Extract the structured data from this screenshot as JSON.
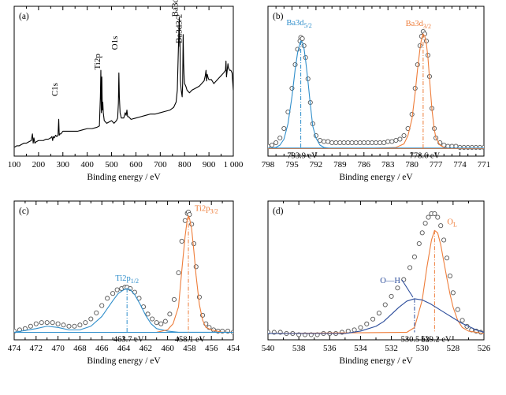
{
  "colors": {
    "orange": "#ee7d3a",
    "blue": "#2f8ecb",
    "navy": "#2b4c9b",
    "marker": "#555555",
    "black": "#000000"
  },
  "chart_data": [
    {
      "id": "a",
      "type": "line",
      "panel_label": "(a)",
      "xlabel": "Binding energy / eV",
      "xlim": [
        100,
        1000
      ],
      "ylim": [
        0,
        100
      ],
      "x_reversed": false,
      "xticks": [
        100,
        200,
        300,
        400,
        500,
        600,
        700,
        800,
        900,
        1000
      ],
      "tick_labels": [
        "100",
        "200",
        "300",
        "400",
        "500",
        "600",
        "700",
        "800",
        "900",
        "1 000"
      ],
      "series": [
        {
          "style": "spectrum",
          "x": [
            102,
            110,
            120,
            130,
            140,
            150,
            160,
            170,
            175,
            178,
            181,
            185,
            190,
            200,
            210,
            220,
            230,
            240,
            250,
            255,
            258,
            261,
            265,
            270,
            275,
            280,
            283,
            285,
            288,
            292,
            300,
            320,
            340,
            360,
            380,
            400,
            420,
            440,
            450,
            454,
            456,
            458,
            460,
            462,
            464,
            466,
            470,
            480,
            500,
            510,
            520,
            525,
            528,
            530,
            532,
            535,
            540,
            550,
            556,
            560,
            563,
            566,
            570,
            580,
            600,
            620,
            640,
            660,
            680,
            700,
            720,
            740,
            755,
            765,
            770,
            775,
            778,
            779,
            780,
            781,
            782,
            783,
            786,
            790,
            792,
            794,
            796,
            798,
            800,
            805,
            810,
            820,
            830,
            840,
            850,
            860,
            870,
            880,
            885,
            888,
            890,
            893,
            897,
            900,
            910,
            920,
            930,
            940,
            950,
            960,
            968,
            970,
            972,
            975,
            978,
            980,
            985,
            990,
            995,
            1000
          ],
          "y": [
            2,
            3,
            3,
            4,
            5,
            5,
            6,
            7,
            12,
            5,
            9,
            5,
            6,
            7,
            7,
            7,
            8,
            8,
            9,
            10,
            7,
            10,
            9,
            11,
            10,
            11,
            23,
            11,
            12,
            12,
            14,
            14,
            14,
            14,
            15,
            16,
            16,
            17,
            18,
            40,
            60,
            28,
            55,
            30,
            36,
            28,
            22,
            20,
            22,
            20,
            22,
            24,
            35,
            58,
            40,
            28,
            24,
            24,
            28,
            26,
            30,
            25,
            25,
            23,
            24,
            25,
            26,
            27,
            27,
            28,
            29,
            30,
            32,
            36,
            45,
            80,
            100,
            85,
            78,
            82,
            65,
            52,
            45,
            40,
            50,
            87,
            65,
            55,
            50,
            48,
            45,
            43,
            45,
            46,
            47,
            48,
            50,
            52,
            56,
            60,
            52,
            57,
            54,
            53,
            53,
            50,
            52,
            54,
            56,
            58,
            60,
            67,
            55,
            60,
            65,
            62,
            60,
            60,
            58,
            45
          ]
        }
      ],
      "annotations": [
        {
          "text": "C1s",
          "x": 285
        },
        {
          "text": "Ti2p",
          "x": 459
        },
        {
          "text": "O1s",
          "x": 530
        },
        {
          "text": "Ba3d5/2",
          "x": 778
        },
        {
          "text": "Ba3d3/2",
          "x": 794
        }
      ]
    },
    {
      "id": "b",
      "type": "scatter",
      "panel_label": "(b)",
      "xlabel": "Binding energy / eV",
      "xlim": [
        798,
        771
      ],
      "ylim": [
        0,
        100
      ],
      "x_reversed": true,
      "xticks": [
        798,
        795,
        792,
        789,
        786,
        783,
        780,
        777,
        774,
        771
      ],
      "tick_labels": [
        "798",
        "795",
        "792",
        "789",
        "786",
        "783",
        "780",
        "777",
        "774",
        "771"
      ],
      "series": [
        {
          "style": "markers",
          "x": [
            798,
            797.5,
            797,
            796.5,
            796,
            795.5,
            795,
            794.6,
            794.3,
            794,
            793.9,
            793.7,
            793.5,
            793.3,
            793,
            792.7,
            792.4,
            792,
            791.5,
            791,
            790.5,
            790,
            789.5,
            789,
            788.5,
            788,
            787.5,
            787,
            786.5,
            786,
            785.5,
            785,
            784.5,
            784,
            783.5,
            783,
            782.5,
            782,
            781.5,
            781,
            780.5,
            780,
            779.6,
            779.3,
            779,
            778.8,
            778.6,
            778.4,
            778.2,
            778,
            777.8,
            777.5,
            777.2,
            777,
            776.5,
            776,
            775.5,
            775,
            774.5,
            774,
            773.5,
            773,
            772.5,
            772,
            771.5,
            771
          ],
          "y": [
            3,
            4,
            6,
            10,
            18,
            32,
            52,
            72,
            85,
            92,
            95,
            94,
            88,
            78,
            60,
            40,
            22,
            12,
            8,
            7,
            7,
            6,
            6,
            6,
            6,
            6,
            6,
            6,
            6,
            6,
            6,
            6,
            6,
            6,
            6,
            7,
            7,
            8,
            9,
            12,
            18,
            30,
            52,
            72,
            88,
            96,
            100,
            98,
            92,
            80,
            62,
            35,
            18,
            10,
            6,
            4,
            3,
            3,
            3,
            2,
            2,
            2,
            2,
            2,
            2,
            2
          ]
        },
        {
          "style": "fit",
          "color_key": "blue",
          "x": [
            798,
            797,
            796.5,
            796,
            795.5,
            795,
            794.6,
            794.3,
            794,
            793.9,
            793.7,
            793.5,
            793.3,
            793,
            792.7,
            792.4,
            792,
            791.5,
            791,
            790,
            789,
            788
          ],
          "y": [
            1,
            2,
            4,
            9,
            22,
            45,
            68,
            82,
            90,
            92,
            91,
            86,
            76,
            58,
            38,
            20,
            10,
            4,
            2,
            1,
            1,
            1
          ]
        },
        {
          "style": "fit",
          "color_key": "orange",
          "x": [
            786,
            782,
            781,
            780.5,
            780,
            779.6,
            779.3,
            779,
            778.8,
            778.6,
            778.4,
            778.2,
            778,
            777.8,
            777.5,
            777.2,
            777,
            776.5,
            776,
            775,
            771
          ],
          "y": [
            1,
            2,
            5,
            12,
            26,
            48,
            68,
            85,
            94,
            98,
            96,
            90,
            78,
            60,
            34,
            17,
            10,
            4,
            2,
            1,
            1
          ]
        },
        {
          "style": "baseline",
          "color_key": "orange",
          "x": [
            798,
            771
          ],
          "y": [
            1,
            1
          ]
        },
        {
          "style": "baseline",
          "color_key": "blue",
          "x": [
            798,
            771
          ],
          "y": [
            1.5,
            1.5
          ]
        }
      ],
      "peaks": [
        {
          "x": 793.9,
          "y": 92,
          "label_main": "Ba3d",
          "label_sub": "5/2",
          "color_key": "blue",
          "be_label": "793.9 eV"
        },
        {
          "x": 778.6,
          "y": 98,
          "label_main": "Ba3d",
          "label_sub": "3/2",
          "color_key": "orange",
          "be_label": "778.6 eV"
        }
      ]
    },
    {
      "id": "c",
      "type": "scatter",
      "panel_label": "(c)",
      "xlabel": "Binding energy / eV",
      "xlim": [
        474,
        454
      ],
      "ylim": [
        0,
        100
      ],
      "x_reversed": true,
      "xticks": [
        474,
        472,
        470,
        468,
        466,
        464,
        462,
        460,
        458,
        456,
        454
      ],
      "tick_labels": [
        "474",
        "472",
        "470",
        "468",
        "466",
        "464",
        "462",
        "460",
        "458",
        "456",
        "454"
      ],
      "series": [
        {
          "style": "markers",
          "x": [
            474,
            473.5,
            473,
            472.5,
            472,
            471.5,
            471,
            470.5,
            470,
            469.5,
            469,
            468.5,
            468,
            467.5,
            467,
            466.5,
            466,
            465.5,
            465,
            464.6,
            464.2,
            463.9,
            463.7,
            463.4,
            463,
            462.6,
            462.2,
            461.8,
            461.4,
            461,
            460.6,
            460.2,
            459.8,
            459.4,
            459,
            458.7,
            458.4,
            458.2,
            458.1,
            458,
            457.8,
            457.6,
            457.4,
            457.1,
            456.8,
            456.5,
            456.2,
            455.8,
            455.4,
            455,
            454.5,
            454
          ],
          "y": [
            2,
            3,
            4,
            6,
            8,
            9,
            9,
            9,
            8,
            7,
            6,
            6,
            7,
            9,
            12,
            17,
            23,
            29,
            33,
            36,
            37,
            38,
            38,
            37,
            34,
            29,
            22,
            16,
            12,
            9,
            8,
            10,
            16,
            28,
            50,
            76,
            93,
            99,
            100,
            98,
            90,
            74,
            55,
            30,
            15,
            8,
            5,
            3,
            2,
            2,
            2,
            1
          ]
        },
        {
          "style": "fit",
          "color_key": "blue",
          "x": [
            474,
            472,
            471,
            470,
            469,
            468,
            467,
            466,
            465,
            464.5,
            464,
            463.7,
            463.4,
            463,
            462.5,
            462,
            461.5,
            461,
            460,
            459,
            458,
            454
          ],
          "y": [
            1,
            4,
            6,
            5,
            3,
            3,
            6,
            14,
            27,
            33,
            36,
            37,
            36,
            32,
            24,
            15,
            8,
            4,
            2,
            1,
            1,
            1
          ]
        },
        {
          "style": "fit",
          "color_key": "orange",
          "x": [
            461,
            460,
            459.5,
            459,
            458.7,
            458.4,
            458.2,
            458.1,
            458,
            457.8,
            457.6,
            457.4,
            457.1,
            456.8,
            456.5,
            456,
            455,
            454
          ],
          "y": [
            1,
            3,
            8,
            22,
            52,
            80,
            94,
            97,
            95,
            86,
            68,
            48,
            24,
            11,
            5,
            3,
            1,
            1
          ]
        },
        {
          "style": "baseline",
          "color_key": "blue",
          "x": [
            474,
            454
          ],
          "y": [
            1,
            1
          ]
        }
      ],
      "peaks": [
        {
          "x": 463.7,
          "y": 37,
          "label_main": "Ti2p",
          "label_sub": "1/2",
          "color_key": "blue",
          "be_label": "463.7 eV"
        },
        {
          "x": 458.1,
          "y": 97,
          "label_main": "Ti2p",
          "label_sub": "3/2",
          "color_key": "orange",
          "be_label": "458.1 eV"
        }
      ]
    },
    {
      "id": "d",
      "type": "scatter",
      "panel_label": "(d)",
      "xlabel": "Binding energy / eV",
      "xlim": [
        540,
        526
      ],
      "ylim": [
        0,
        100
      ],
      "x_reversed": true,
      "xticks": [
        540,
        538,
        536,
        534,
        532,
        530,
        528,
        526
      ],
      "tick_labels": [
        "540",
        "538",
        "536",
        "534",
        "532",
        "530",
        "528",
        "526"
      ],
      "series": [
        {
          "style": "markers",
          "x": [
            540,
            539.6,
            539.2,
            538.8,
            538.4,
            538,
            537.6,
            537.2,
            536.8,
            536.4,
            536,
            535.6,
            535.2,
            534.8,
            534.4,
            534,
            533.6,
            533.2,
            532.8,
            532.4,
            532,
            531.6,
            531.2,
            530.8,
            530.5,
            530.2,
            530,
            529.8,
            529.6,
            529.4,
            529.2,
            529,
            528.8,
            528.6,
            528.4,
            528.2,
            528,
            527.7,
            527.4,
            527.1,
            526.8,
            526.5,
            526.2
          ],
          "y": [
            1,
            1,
            1,
            0,
            0,
            -1,
            -1,
            -1,
            -1,
            0,
            0,
            0,
            1,
            2,
            3,
            5,
            8,
            12,
            17,
            24,
            31,
            38,
            45,
            55,
            64,
            75,
            84,
            92,
            97,
            100,
            100,
            97,
            90,
            78,
            63,
            48,
            34,
            20,
            11,
            6,
            3,
            2,
            1
          ]
        },
        {
          "style": "fit",
          "color_key": "orange",
          "x": [
            540,
            531,
            530.5,
            530,
            529.7,
            529.4,
            529.2,
            529,
            528.8,
            528.6,
            528.4,
            528.2,
            528,
            527.7,
            527.4,
            527,
            526
          ],
          "y": [
            0,
            1,
            5,
            28,
            55,
            78,
            86,
            84,
            74,
            60,
            46,
            33,
            22,
            11,
            5,
            2,
            0
          ]
        },
        {
          "style": "fit",
          "color_key": "navy",
          "x": [
            540,
            537,
            535,
            534,
            533,
            532.5,
            532,
            531.5,
            531,
            530.5,
            530,
            529.5,
            529,
            528.5,
            528,
            527.5,
            527,
            526.5,
            526
          ],
          "y": [
            0,
            0,
            0,
            2,
            6,
            10,
            16,
            22,
            27,
            29,
            28,
            25,
            21,
            17,
            13,
            9,
            6,
            3,
            1
          ]
        }
      ],
      "peaks": [
        {
          "x": 530.5,
          "y": 29,
          "label_main": "O—H",
          "label_sub": "",
          "color_key": "navy",
          "be_label": "530.5 eV"
        },
        {
          "x": 529.2,
          "y": 86,
          "label_main": "O",
          "label_sub": "L",
          "color_key": "orange",
          "be_label": "529.2 eV"
        }
      ]
    }
  ]
}
